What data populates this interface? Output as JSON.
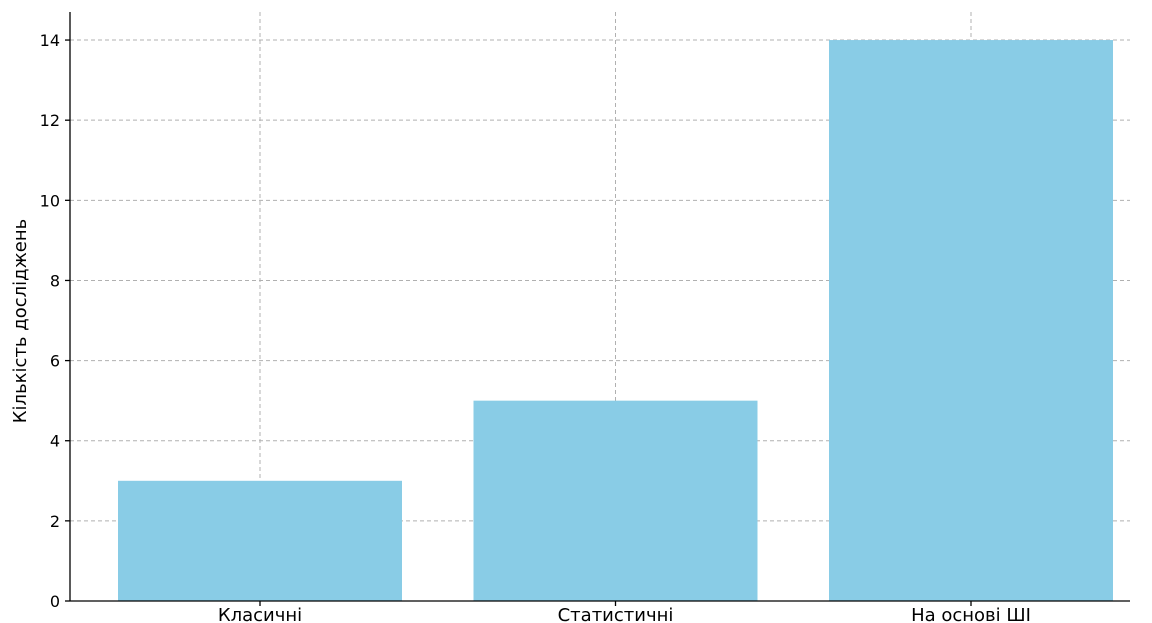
{
  "chart_data": {
    "type": "bar",
    "categories": [
      "Класичні",
      "Статистичні",
      "На основі ШІ"
    ],
    "values": [
      3,
      5,
      14
    ],
    "title": "",
    "xlabel": "",
    "ylabel": "Кількість досліджень",
    "ylim": [
      0,
      14.7
    ],
    "yticks": [
      0,
      2,
      4,
      6,
      8,
      10,
      12,
      14
    ],
    "grid": true,
    "bar_color": "#89CCE6"
  }
}
